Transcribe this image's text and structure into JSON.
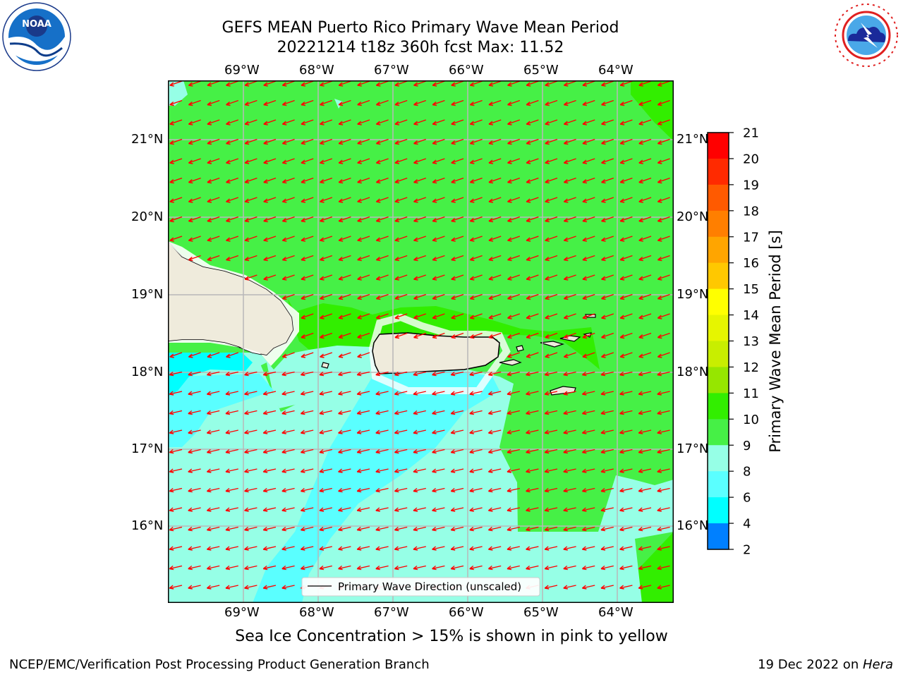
{
  "header": {
    "title_line1": "GEFS MEAN Puerto Rico Primary Wave Mean Period",
    "title_line2": "20221214 t18z 360h fcst   Max: 11.52"
  },
  "logos": {
    "left": {
      "name": "noaa-logo",
      "text": "NOAA",
      "ring_text": "NATIONAL OCEANIC AND ATMOSPHERIC ADMINISTRATION · U.S. DEPARTMENT OF COMMERCE"
    },
    "right": {
      "name": "nws-logo",
      "ring_text": "NATIONAL WEATHER SERVICE"
    }
  },
  "map": {
    "lon_labels": [
      "69°W",
      "68°W",
      "67°W",
      "66°W",
      "65°W",
      "64°W"
    ],
    "lat_labels": [
      "21°N",
      "20°N",
      "19°N",
      "18°N",
      "17°N",
      "16°N"
    ],
    "legend_label": "Primary Wave Direction (unscaled)",
    "arrow_color": "#ff0000",
    "land_color": "#efebdc"
  },
  "colorbar": {
    "label": "Primary Wave Mean Period [s]",
    "ticks": [
      "21",
      "20",
      "19",
      "18",
      "17",
      "16",
      "15",
      "14",
      "13",
      "12",
      "11",
      "10",
      "9",
      "8",
      "6",
      "4",
      "2"
    ],
    "colors": [
      "#ff0000",
      "#ff2a00",
      "#ff5a00",
      "#ff7f00",
      "#ffa500",
      "#ffc800",
      "#ffff00",
      "#e6f500",
      "#c8ee00",
      "#96e600",
      "#32ee00",
      "#46f046",
      "#96ffe6",
      "#5affff",
      "#00ffff",
      "#0080ff",
      "#0000ff"
    ]
  },
  "footer": {
    "note": "Sea Ice Concentration > 15% is shown in pink to yellow",
    "credit": "NCEP/EMC/Verification Post Processing Product Generation Branch",
    "date_prefix": "19 Dec 2022 on ",
    "machine": "Hera"
  }
}
